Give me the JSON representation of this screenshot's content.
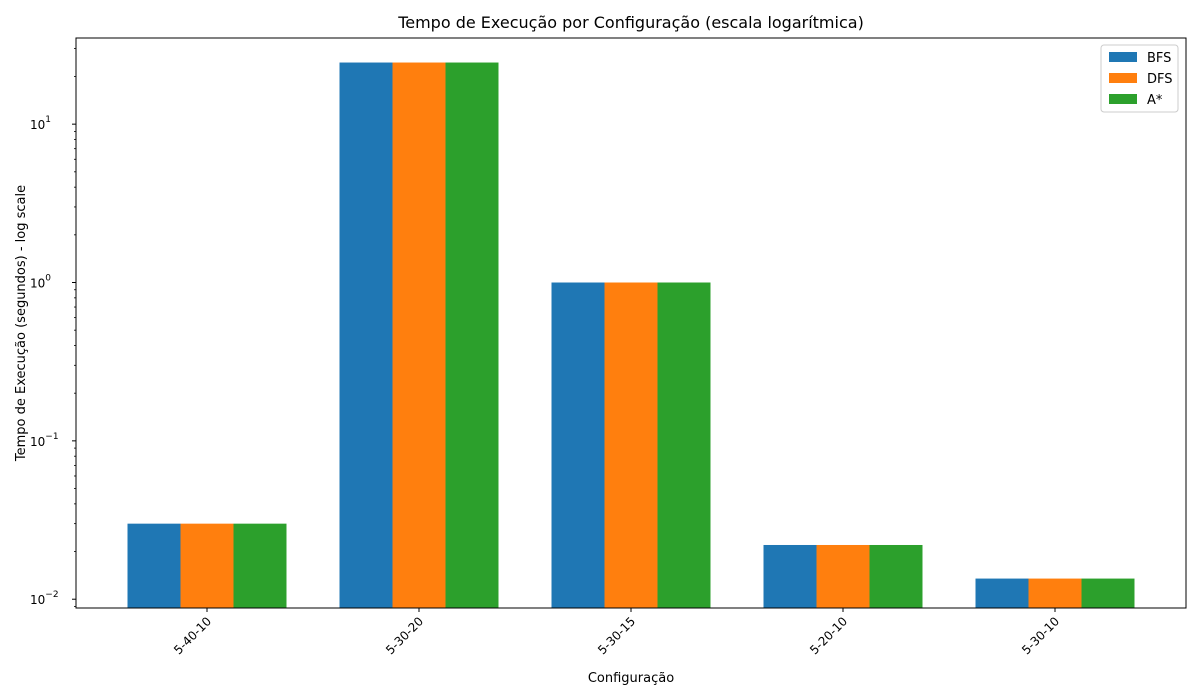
{
  "chart_data": {
    "type": "bar",
    "title": "Tempo de Execução por Configuração (escala logarítmica)",
    "xlabel": "Configuração",
    "ylabel": "Tempo de Execução (segundos) - log scale",
    "yscale": "log",
    "ylim": [
      0.0088,
      35
    ],
    "yticks": [
      {
        "value": 0.01,
        "base": "10",
        "exp": "−2"
      },
      {
        "value": 0.1,
        "base": "10",
        "exp": "−1"
      },
      {
        "value": 1,
        "base": "10",
        "exp": "0"
      },
      {
        "value": 10,
        "base": "10",
        "exp": "1"
      }
    ],
    "categories": [
      "5-40-10",
      "5-30-20",
      "5-30-15",
      "5-20-10",
      "5-30-10"
    ],
    "series": [
      {
        "name": "BFS",
        "color": "#1f77b4",
        "values": [
          0.03,
          24.5,
          1.0,
          0.022,
          0.0135
        ]
      },
      {
        "name": "DFS",
        "color": "#ff7f0e",
        "values": [
          0.03,
          24.5,
          1.0,
          0.022,
          0.0135
        ]
      },
      {
        "name": "A*",
        "color": "#2ca02c",
        "values": [
          0.03,
          24.5,
          1.0,
          0.022,
          0.0135
        ]
      }
    ],
    "grid": false,
    "legend_position": "top-right"
  }
}
